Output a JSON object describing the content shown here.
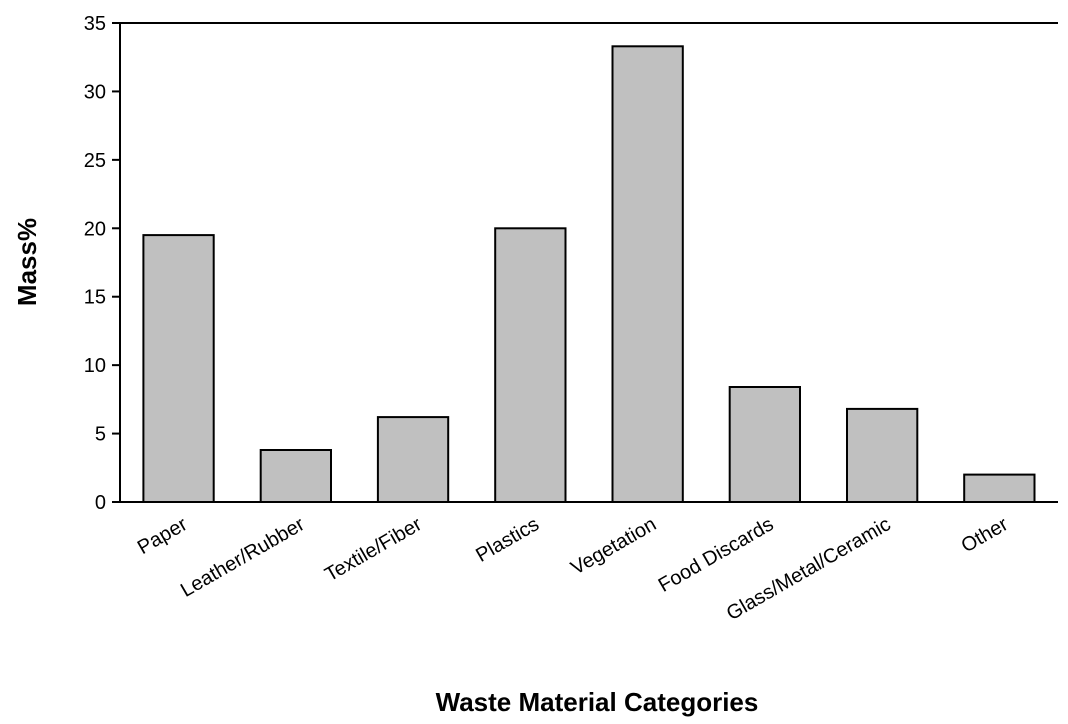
{
  "chart_data": {
    "type": "bar",
    "title": "",
    "xlabel": "Waste Material Categories",
    "ylabel": "Mass%",
    "categories": [
      "Paper",
      "Leather/Rubber",
      "Textile/Fiber",
      "Plastics",
      "Vegetation",
      "Food Discards",
      "Glass/Metal/Ceramic",
      "Other"
    ],
    "values": [
      19.5,
      3.8,
      6.2,
      20.0,
      33.3,
      8.4,
      6.8,
      2.0
    ],
    "ylim": [
      0,
      35
    ],
    "yticks": [
      "0",
      "5",
      "10",
      "15",
      "20",
      "25",
      "30",
      "35"
    ],
    "grid": false,
    "bar_color": "#c0c0c0"
  }
}
